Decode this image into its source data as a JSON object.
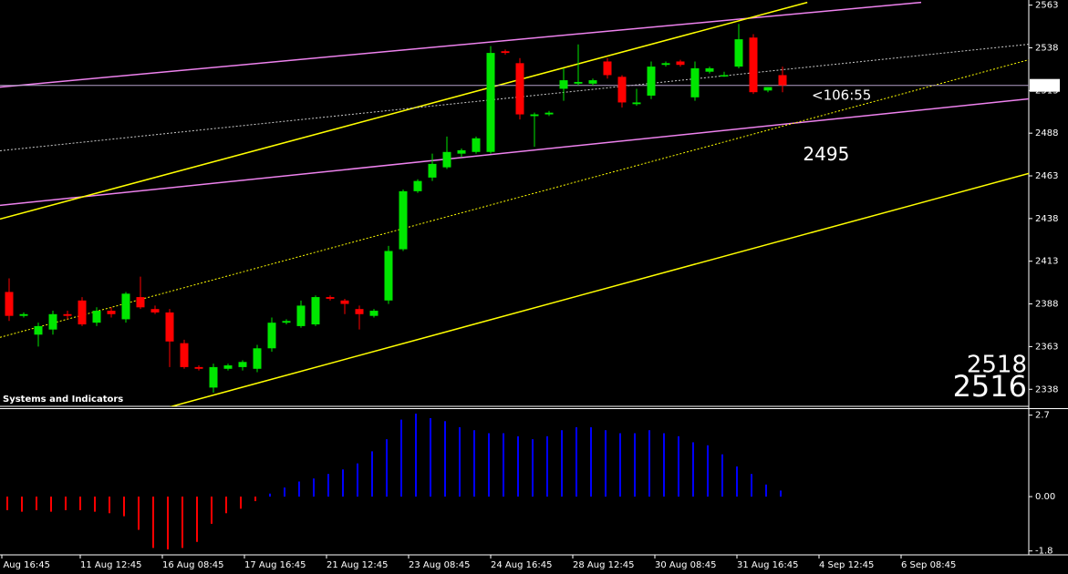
{
  "chart_data": {
    "type": "candlestick",
    "panel_title": "Systems and Indicators",
    "up_color": "#00e600",
    "down_color": "#ff0000",
    "xlim": [
      -0.625,
      69.875
    ],
    "ylim": [
      2328,
      2566
    ],
    "yticks": [
      2563,
      2538,
      2513,
      2488,
      2463,
      2438,
      2413,
      2388,
      2363,
      2338
    ],
    "xticks": [
      {
        "value": -0.5,
        "label": "10 Aug 16:45"
      },
      {
        "value": 4.875,
        "label": "11 Aug 12:45"
      },
      {
        "value": 10.5,
        "label": "16 Aug 08:45"
      },
      {
        "value": 16.125,
        "label": "17 Aug 16:45"
      },
      {
        "value": 21.75,
        "label": "21 Aug 12:45"
      },
      {
        "value": 27.375,
        "label": "23 Aug 08:45"
      },
      {
        "value": 33,
        "label": "24 Aug 16:45"
      },
      {
        "value": 38.625,
        "label": "28 Aug 12:45"
      },
      {
        "value": 44.25,
        "label": "30 Aug 08:45"
      },
      {
        "value": 49.875,
        "label": "31 Aug 16:45"
      },
      {
        "value": 55.5,
        "label": "4 Sep 12:45"
      },
      {
        "value": 61.125,
        "label": "6 Sep 08:45"
      }
    ],
    "open": [
      2395,
      2381,
      2370,
      2373,
      2382,
      2390,
      2377,
      2384,
      2379,
      2392,
      2385,
      2383,
      2365,
      2351,
      2339,
      2350,
      2351,
      2350,
      2362,
      2377,
      2375,
      2376,
      2392,
      2390,
      2385,
      2381,
      2390,
      2420,
      2454,
      2462,
      2468,
      2476,
      2477,
      2477,
      2536,
      2529,
      2498,
      2499,
      2514,
      2517,
      2517,
      2530,
      2521,
      2505,
      2510,
      2528,
      2530,
      2509,
      2524,
      2522,
      2527,
      2544,
      2513,
      2522
    ],
    "high": [
      2403,
      2383,
      2377,
      2384,
      2384,
      2392,
      2386,
      2386,
      2395,
      2404,
      2387,
      2385,
      2367,
      2352,
      2353,
      2353,
      2355,
      2364,
      2380,
      2379,
      2390,
      2393,
      2393,
      2391,
      2387,
      2385,
      2422,
      2455,
      2461,
      2476,
      2486,
      2479,
      2486,
      2539,
      2537,
      2532,
      2500,
      2501,
      2526,
      2540,
      2520,
      2532,
      2522,
      2514,
      2530,
      2530,
      2531,
      2530,
      2527,
      2524,
      2552,
      2546,
      2515,
      2527
    ],
    "low": [
      2378,
      2380,
      2363,
      2370,
      2379,
      2375,
      2375,
      2380,
      2377,
      2385,
      2382,
      2351,
      2350,
      2349,
      2336,
      2349,
      2349,
      2348,
      2360,
      2376,
      2374,
      2375,
      2390,
      2382,
      2373,
      2380,
      2388,
      2419,
      2453,
      2460,
      2467,
      2474,
      2476,
      2476,
      2534,
      2496,
      2480,
      2498,
      2507,
      2516,
      2516,
      2520,
      2503,
      2504,
      2508,
      2527,
      2527,
      2507,
      2523,
      2521,
      2526,
      2511,
      2512,
      2512
    ],
    "close": [
      2381,
      2382,
      2375,
      2382,
      2381,
      2376,
      2384,
      2382,
      2394,
      2386,
      2383,
      2366,
      2351,
      2350,
      2351,
      2352,
      2354,
      2362,
      2377,
      2378,
      2387,
      2392,
      2391,
      2388,
      2382,
      2384,
      2419,
      2454,
      2460,
      2470,
      2477,
      2478,
      2485,
      2535,
      2535,
      2499,
      2499,
      2500,
      2519,
      2518,
      2519,
      2522,
      2506,
      2506,
      2527,
      2529,
      2528,
      2526,
      2526,
      2522,
      2543,
      2512,
      2515,
      2516
    ],
    "lines": [
      {
        "color": "#ee82ee",
        "dash": false,
        "x": [
          -0.625,
          62.5
        ],
        "y": [
          2515,
          2564.6
        ]
      },
      {
        "color": "#ee82ee",
        "dash": false,
        "x": [
          -0.625,
          69.875
        ],
        "y": [
          2445.7,
          2508.1
        ]
      },
      {
        "color": "#ffff00",
        "dash": false,
        "x": [
          -0.625,
          54.7
        ],
        "y": [
          2437.7,
          2564.6
        ]
      },
      {
        "color": "#ffff00",
        "dash": false,
        "x": [
          10.9,
          69.875
        ],
        "y": [
          2327.4,
          2464.4
        ]
      },
      {
        "color": "#c8c8c8",
        "dash": true,
        "x": [
          -0.625,
          69.875
        ],
        "y": [
          2477.7,
          2540.1
        ]
      },
      {
        "color": "#ffff00",
        "dash": true,
        "x": [
          -0.625,
          69.875
        ],
        "y": [
          2368.4,
          2531
        ]
      }
    ],
    "annotations": [
      {
        "text": "<106:55",
        "color": "#00e600",
        "x": 55,
        "y": 2510
      },
      {
        "text": 2495,
        "color": "#ffffff",
        "x": 54.4,
        "y": 2475
      }
    ],
    "ask": 2518,
    "bid": 2516,
    "quote_color": "#00e600",
    "indicator": {
      "type": "histogram",
      "positive_color": "#0000ff",
      "negative_color": "#ff0000",
      "ylim": [
        -1.9,
        2.9
      ],
      "yticks": [
        2.7,
        {
          "value": 0,
          "label": "0.00"
        },
        -1.8
      ],
      "values": [
        -0.45,
        -0.5,
        -0.45,
        -0.5,
        -0.45,
        -0.45,
        -0.5,
        -0.55,
        -0.65,
        -1.1,
        -1.7,
        -1.75,
        -1.7,
        -1.5,
        -0.9,
        -0.55,
        -0.4,
        -0.15,
        0.1,
        0.3,
        0.5,
        0.6,
        0.75,
        0.9,
        1.1,
        1.5,
        1.9,
        2.55,
        2.75,
        2.6,
        2.5,
        2.3,
        2.2,
        2.1,
        2.1,
        2.0,
        1.9,
        2.0,
        2.2,
        2.3,
        2.3,
        2.2,
        2.1,
        2.1,
        2.2,
        2.1,
        2.0,
        1.8,
        1.7,
        1.4,
        1.0,
        0.75,
        0.4,
        0.2
      ]
    }
  }
}
